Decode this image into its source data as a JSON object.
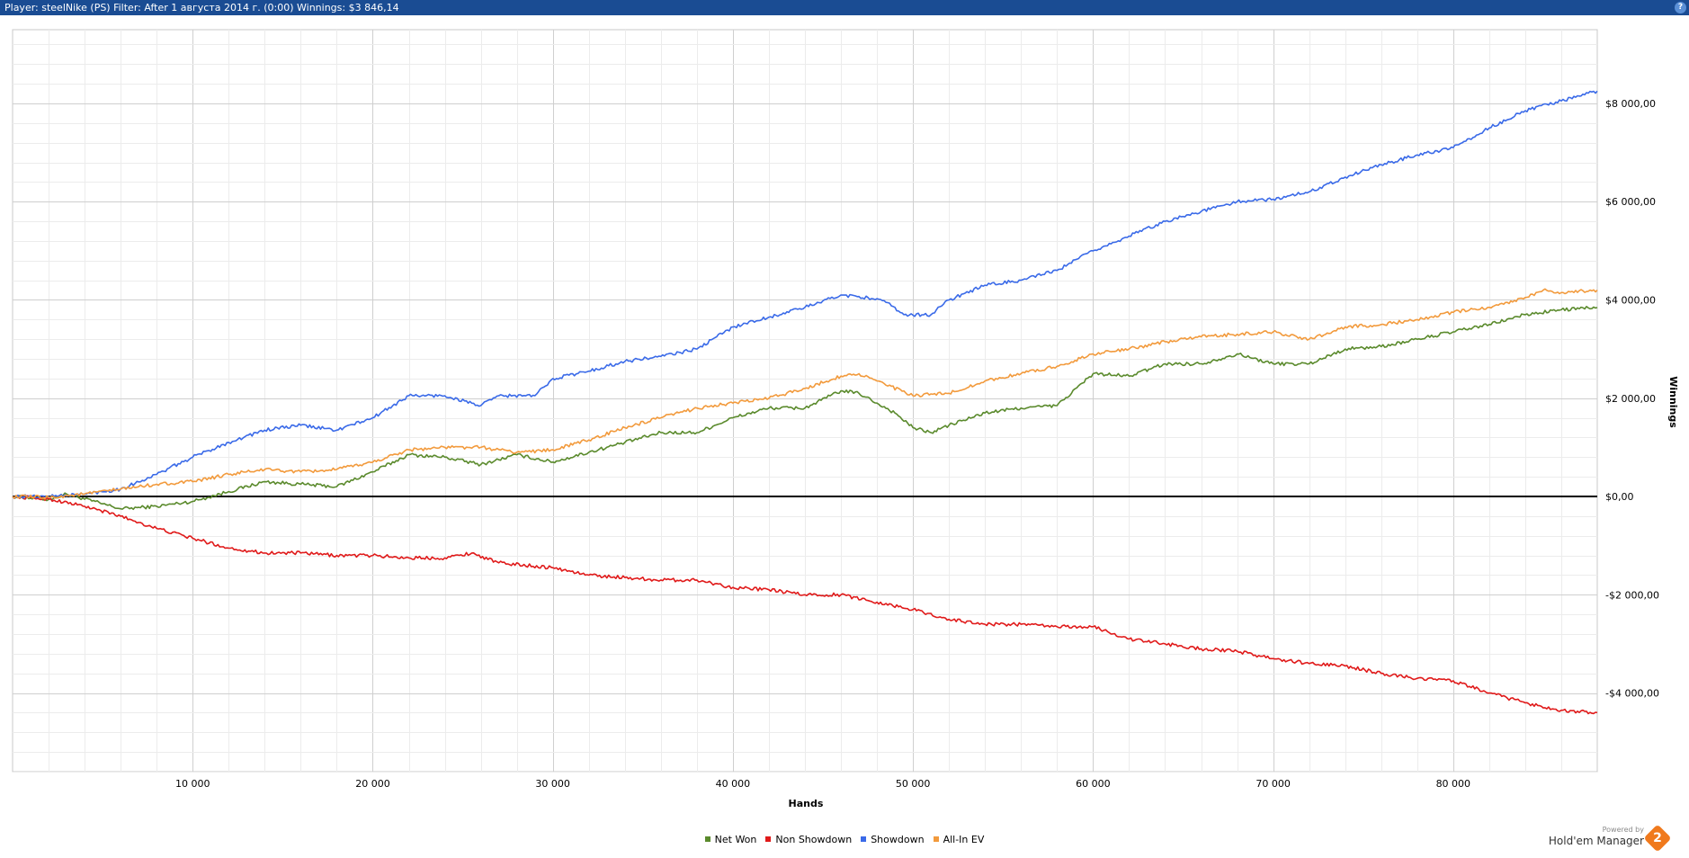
{
  "window": {
    "title": "Player: steelNike (PS) Filter:  After 1 августа 2014 г. (0:00)  Winnings: $3 846,14",
    "help_label": "?"
  },
  "chart_data": {
    "type": "line",
    "xlabel": "Hands",
    "ylabel": "Winnings",
    "xlim": [
      0,
      88000
    ],
    "ylim": [
      -5600,
      9500
    ],
    "x_ticks": [
      10000,
      20000,
      30000,
      40000,
      50000,
      60000,
      70000,
      80000
    ],
    "x_tick_labels": [
      "10 000",
      "20 000",
      "30 000",
      "40 000",
      "50 000",
      "60 000",
      "70 000",
      "80 000"
    ],
    "y_ticks": [
      8000,
      6000,
      4000,
      2000,
      0,
      -2000,
      -4000
    ],
    "y_tick_labels": [
      "$8 000,00",
      "$6 000,00",
      "$4 000,00",
      "$2 000,00",
      "$0,00",
      "-$2 000,00",
      "-$4 000,00"
    ],
    "grid": true,
    "legend_position": "bottom",
    "series": [
      {
        "name": "Net Won",
        "color": "#5a8a2c",
        "x": [
          0,
          2000,
          3000,
          5000,
          6000,
          8000,
          10000,
          12000,
          14000,
          16000,
          18000,
          20000,
          22000,
          24000,
          26000,
          28000,
          30000,
          32000,
          34000,
          36000,
          38000,
          40000,
          42000,
          44000,
          46000,
          47000,
          48000,
          49000,
          50000,
          51000,
          52000,
          54000,
          56000,
          58000,
          60000,
          62000,
          64000,
          66000,
          68000,
          70000,
          72000,
          74000,
          76000,
          78000,
          80000,
          82000,
          84000,
          86000,
          88000
        ],
        "y": [
          0,
          -60,
          50,
          -150,
          -250,
          -200,
          -100,
          100,
          300,
          250,
          200,
          500,
          850,
          800,
          650,
          850,
          700,
          900,
          1100,
          1300,
          1300,
          1600,
          1800,
          1800,
          2150,
          2100,
          1900,
          1700,
          1400,
          1300,
          1450,
          1700,
          1800,
          1850,
          2500,
          2450,
          2700,
          2700,
          2900,
          2700,
          2700,
          3000,
          3050,
          3200,
          3350,
          3500,
          3700,
          3800,
          3846
        ]
      },
      {
        "name": "Non Showdown",
        "color": "#e01a1a",
        "x": [
          0,
          2000,
          4000,
          6000,
          8000,
          10000,
          12000,
          14000,
          16000,
          18000,
          20000,
          22000,
          24000,
          25500,
          27000,
          30000,
          32000,
          34000,
          36000,
          38000,
          40000,
          42000,
          44000,
          46000,
          48000,
          50000,
          52000,
          54000,
          56000,
          58000,
          60000,
          62000,
          64000,
          66000,
          68000,
          70000,
          72000,
          74000,
          76000,
          78000,
          80000,
          82000,
          84000,
          86000,
          88000
        ],
        "y": [
          0,
          -50,
          -200,
          -400,
          -650,
          -850,
          -1050,
          -1150,
          -1150,
          -1200,
          -1200,
          -1250,
          -1250,
          -1150,
          -1350,
          -1450,
          -1600,
          -1650,
          -1700,
          -1700,
          -1850,
          -1900,
          -2000,
          -2000,
          -2150,
          -2300,
          -2500,
          -2600,
          -2600,
          -2650,
          -2650,
          -2900,
          -3000,
          -3100,
          -3150,
          -3300,
          -3400,
          -3450,
          -3600,
          -3700,
          -3750,
          -4000,
          -4200,
          -4350,
          -4400
        ]
      },
      {
        "name": "Showdown",
        "color": "#3a6ae8",
        "x": [
          0,
          2000,
          4000,
          6000,
          8000,
          10000,
          12000,
          14000,
          16000,
          18000,
          20000,
          22000,
          24000,
          26000,
          27000,
          29000,
          30000,
          32000,
          34000,
          36000,
          38000,
          40000,
          42000,
          44000,
          46000,
          47500,
          48500,
          49500,
          51000,
          52000,
          54000,
          56000,
          58000,
          60000,
          62000,
          64000,
          66000,
          68000,
          70000,
          72000,
          74000,
          76000,
          78000,
          80000,
          82000,
          84000,
          86000,
          88000
        ],
        "y": [
          0,
          0,
          50,
          150,
          450,
          800,
          1100,
          1350,
          1450,
          1350,
          1600,
          2050,
          2050,
          1850,
          2050,
          2050,
          2400,
          2550,
          2750,
          2850,
          3000,
          3450,
          3650,
          3850,
          4100,
          4050,
          3950,
          3700,
          3700,
          4000,
          4300,
          4400,
          4600,
          5000,
          5300,
          5600,
          5800,
          6000,
          6050,
          6200,
          6500,
          6750,
          6950,
          7100,
          7500,
          7850,
          8050,
          8250
        ]
      },
      {
        "name": "All-In EV",
        "color": "#f29a3c",
        "x": [
          0,
          2000,
          4000,
          6000,
          8000,
          10000,
          12000,
          14000,
          16000,
          18000,
          20000,
          22000,
          24000,
          26000,
          28000,
          30000,
          32000,
          34000,
          36000,
          38000,
          40000,
          42000,
          44000,
          46000,
          47000,
          48000,
          50000,
          52000,
          54000,
          56000,
          58000,
          60000,
          62000,
          64000,
          66000,
          68000,
          70000,
          72000,
          74000,
          76000,
          78000,
          80000,
          82000,
          84000,
          85000,
          86000,
          88000
        ],
        "y": [
          0,
          -20,
          50,
          150,
          250,
          300,
          450,
          550,
          500,
          550,
          700,
          950,
          1000,
          1000,
          900,
          950,
          1150,
          1400,
          1600,
          1800,
          1900,
          2000,
          2200,
          2450,
          2500,
          2350,
          2050,
          2100,
          2350,
          2500,
          2650,
          2900,
          3000,
          3150,
          3250,
          3300,
          3350,
          3200,
          3450,
          3500,
          3600,
          3750,
          3850,
          4050,
          4200,
          4150,
          4200
        ]
      }
    ]
  },
  "branding": {
    "powered_by": "Powered by",
    "name": "Hold'em Manager",
    "logo_glyph": "2",
    "logo_color": "#f07a1d"
  }
}
